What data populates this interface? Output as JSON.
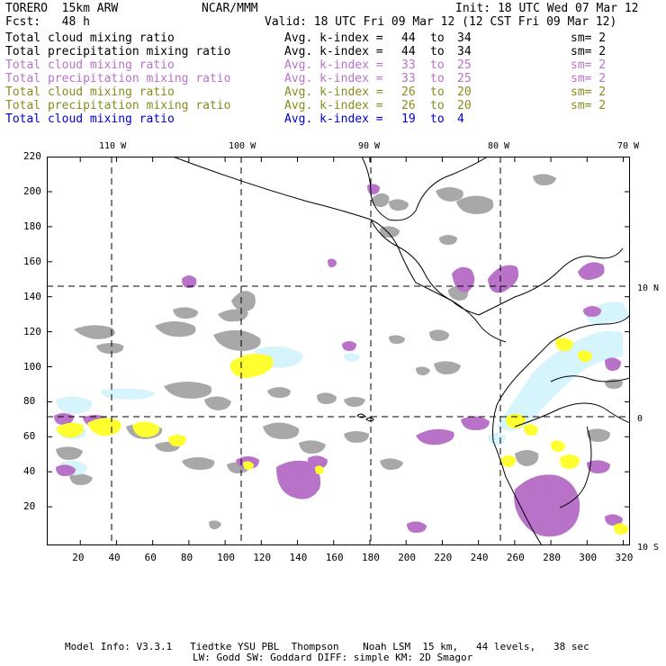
{
  "header": {
    "model": "TORERO  15km ARW",
    "org": "NCAR/MMM",
    "init": "Init: 18 UTC Wed 07 Mar 12",
    "fcst": "Fcst:   48 h",
    "valid": "Valid: 18 UTC Fri 09 Mar 12 (12 CST Fri 09 Mar 12)"
  },
  "legend": [
    {
      "field": "Total cloud mixing ratio",
      "index": "Avg. k-index =",
      "from": "44",
      "to_word": "to",
      "to": "34",
      "sm": "sm= 2",
      "color": "#000000"
    },
    {
      "field": "Total precipitation mixing ratio",
      "index": "Avg. k-index =",
      "from": "44",
      "to_word": "to",
      "to": "34",
      "sm": "sm= 2",
      "color": "#000000"
    },
    {
      "field": "Total cloud mixing ratio",
      "index": "Avg. k-index =",
      "from": "33",
      "to_word": "to",
      "to": "25",
      "sm": "sm= 2",
      "color": "#b873c8"
    },
    {
      "field": "Total precipitation mixing ratio",
      "index": "Avg. k-index =",
      "from": "33",
      "to_word": "to",
      "to": "25",
      "sm": "sm= 2",
      "color": "#b873c8"
    },
    {
      "field": "Total cloud mixing ratio",
      "index": "Avg. k-index =",
      "from": "26",
      "to_word": "to",
      "to": "20",
      "sm": "sm= 2",
      "color": "#8a8a1e"
    },
    {
      "field": "Total precipitation mixing ratio",
      "index": "Avg. k-index =",
      "from": "26",
      "to_word": "to",
      "to": "20",
      "sm": "sm= 2",
      "color": "#8a8a1e"
    },
    {
      "field": "Total cloud mixing ratio",
      "index": "Avg. k-index =",
      "from": "19",
      "to_word": "to",
      "to": "4",
      "sm": "",
      "color": "#0000d0"
    }
  ],
  "map": {
    "lon_labels": [
      "110 W",
      "100 W",
      "90 W",
      "80 W",
      "70 W"
    ],
    "lat_labels": [
      "10 N",
      "0",
      "10 S"
    ],
    "y_ticks": [
      "220",
      "200",
      "180",
      "160",
      "140",
      "120",
      "100",
      "80",
      "60",
      "40",
      "20"
    ],
    "x_ticks": [
      "20",
      "40",
      "60",
      "80",
      "100",
      "120",
      "140",
      "160",
      "180",
      "200",
      "220",
      "240",
      "260",
      "280",
      "300",
      "320"
    ],
    "colors": {
      "gray": "#a8a8a8",
      "purple": "#b873c8",
      "yellow": "#ffff30",
      "cyan": "#d6f4fb",
      "coast": "#000000"
    }
  },
  "footer": {
    "line1": "Model Info: V3.3.1   Tiedtke YSU PBL  Thompson    Noah LSM  15 km,   44 levels,   38 sec",
    "line2": "LW: Godd SW: Goddard DIFF: simple KM: 2D Smagor"
  }
}
